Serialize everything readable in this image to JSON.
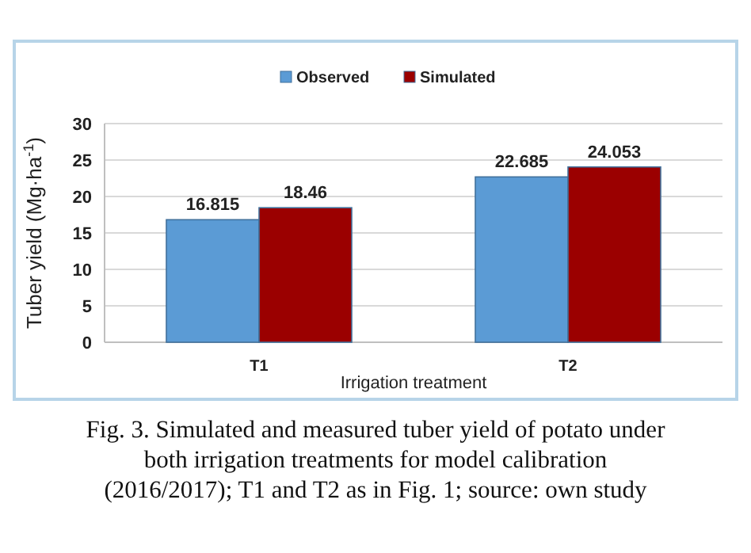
{
  "chart_data": {
    "type": "bar",
    "xlabel": "Irrigation treatment",
    "ylabel": "Tuber yield (Mg·ha$^{-1}$)",
    "categories": [
      "T1",
      "T2"
    ],
    "series": [
      {
        "name": "Observed",
        "color": "#5b9bd5",
        "values": [
          16.815,
          22.685
        ]
      },
      {
        "name": "Simulated",
        "color": "#9b0000",
        "values": [
          18.46,
          24.053
        ]
      }
    ],
    "ylim": [
      0,
      30
    ],
    "yticks": [
      0,
      5,
      10,
      15,
      20,
      25,
      30
    ],
    "grid": "y",
    "legend": "top",
    "data_labels": true,
    "annotations": [
      "Fig. 3. Simulated and measured tuber yield of potato under both irrigation treatments for model calibration (2016/2017); T1 and T2 as in Fig. 1; source: own study"
    ]
  }
}
